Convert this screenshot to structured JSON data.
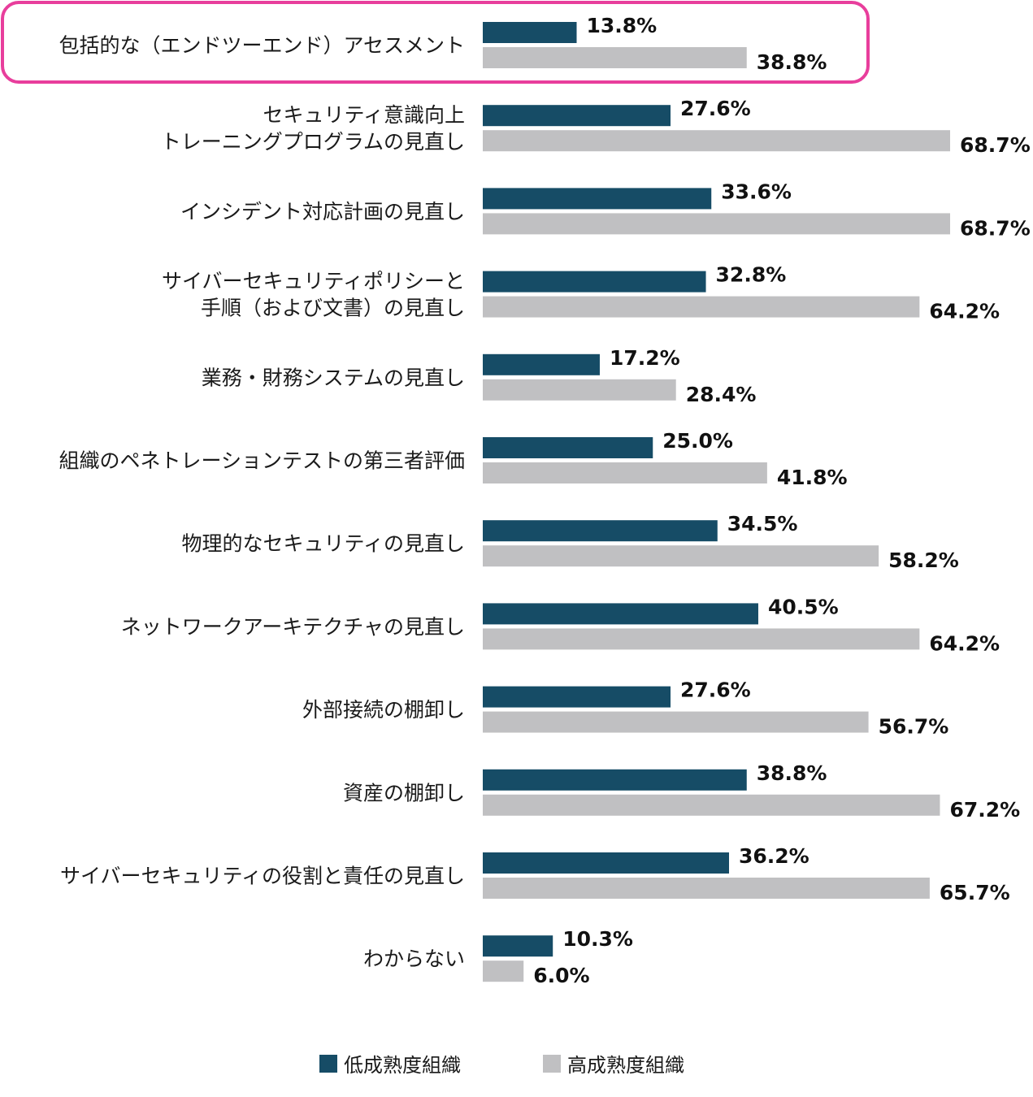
{
  "colors": {
    "low": "#164c66",
    "high": "#c0c0c2",
    "highlight": "#e83e9c"
  },
  "legend": {
    "low_label": "低成熟度組織",
    "high_label": "高成熟度組織"
  },
  "chart_data": {
    "type": "bar",
    "orientation": "horizontal",
    "value_format": "percent",
    "xlim": [
      0,
      100
    ],
    "grid": false,
    "legend_position": "bottom",
    "highlighted_category_index": 0,
    "categories": [
      [
        "包括的な（エンドツーエンド）アセスメント"
      ],
      [
        "セキュリティ意識向上",
        "トレーニングプログラムの見直し"
      ],
      [
        "インシデント対応計画の見直し"
      ],
      [
        "サイバーセキュリティポリシーと",
        "手順（および文書）の見直し"
      ],
      [
        "業務・財務システムの見直し"
      ],
      [
        "組織のペネトレーションテストの第三者評価"
      ],
      [
        "物理的なセキュリティの見直し"
      ],
      [
        "ネットワークアーキテクチャの見直し"
      ],
      [
        "外部接続の棚卸し"
      ],
      [
        "資産の棚卸し"
      ],
      [
        "サイバーセキュリティの役割と責任の見直し"
      ],
      [
        "わからない"
      ]
    ],
    "series": [
      {
        "name": "低成熟度組織",
        "color": "#164c66",
        "values": [
          13.8,
          27.6,
          33.6,
          32.8,
          17.2,
          25.0,
          34.5,
          40.5,
          27.6,
          38.8,
          36.2,
          10.3
        ]
      },
      {
        "name": "高成熟度組織",
        "color": "#c0c0c2",
        "values": [
          38.8,
          68.7,
          68.7,
          64.2,
          28.4,
          41.8,
          58.2,
          64.2,
          56.7,
          67.2,
          65.7,
          6.0
        ]
      }
    ]
  }
}
